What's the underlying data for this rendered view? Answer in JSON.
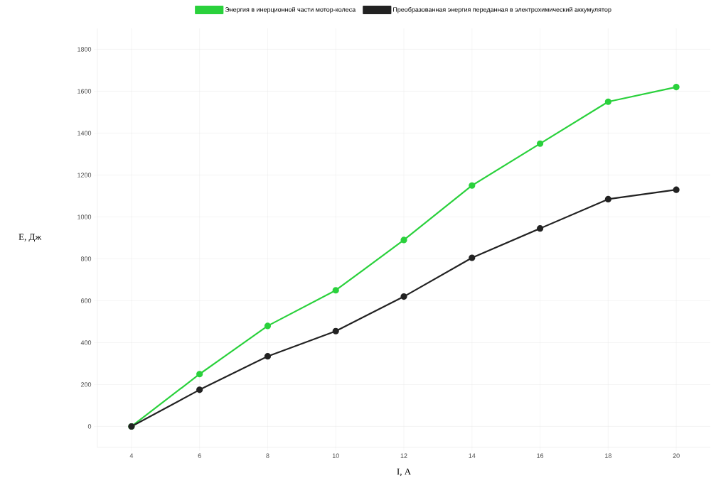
{
  "chart_data": {
    "type": "line",
    "xlabel": "I, A",
    "ylabel": "E, Дж",
    "x": [
      4,
      6,
      8,
      10,
      12,
      14,
      16,
      18,
      20
    ],
    "series": [
      {
        "name": "Энергия в инерционной части мотор-колеса",
        "color": "#2ad13c",
        "values": [
          0,
          250,
          480,
          650,
          890,
          1150,
          1350,
          1550,
          1620
        ]
      },
      {
        "name": "Преобразованная энергия переданная в электрохимический аккумулятор",
        "color": "#222222",
        "values": [
          0,
          175,
          335,
          455,
          620,
          805,
          945,
          1085,
          1130
        ]
      }
    ],
    "xlim": [
      3,
      21
    ],
    "ylim": [
      -100,
      1900
    ],
    "xticks": [
      4,
      6,
      8,
      10,
      12,
      14,
      16,
      18,
      20
    ],
    "yticks": [
      0,
      200,
      400,
      600,
      800,
      1000,
      1200,
      1400,
      1600,
      1800
    ],
    "grid": true,
    "legend": "top",
    "marker": "circle"
  }
}
